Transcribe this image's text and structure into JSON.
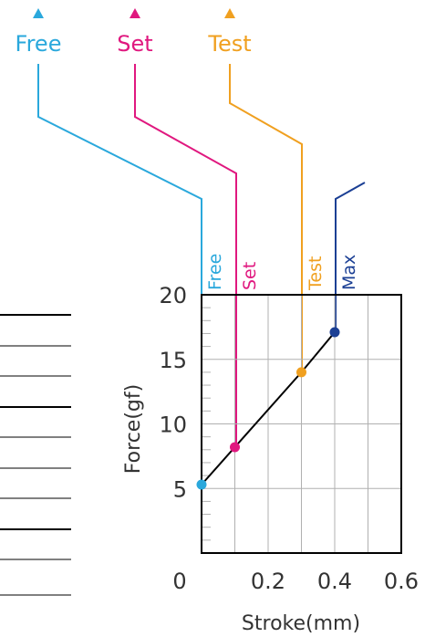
{
  "top_labels": [
    {
      "text": "Free",
      "color": "#2aa8dc"
    },
    {
      "text": "Set",
      "color": "#e0187f"
    },
    {
      "text": "Test",
      "color": "#f0a020"
    }
  ],
  "colors": {
    "free": "#2aa8dc",
    "set": "#e0187f",
    "test": "#f0a020",
    "max": "#1b3f94",
    "axis": "#000000",
    "grid": "#b0b0b0",
    "text": "#333333"
  },
  "chart_data": {
    "type": "line",
    "xlabel": "Stroke(mm)",
    "ylabel": "Force(gf)",
    "xlim": [
      0,
      0.6
    ],
    "ylim": [
      0,
      20
    ],
    "x_tick_labels": [
      "0",
      "0.2",
      "0.4",
      "0.6"
    ],
    "y_tick_labels": [
      "5",
      "10",
      "15",
      "20"
    ],
    "series": [
      {
        "x": [
          0.0,
          0.1,
          0.3,
          0.4
        ],
        "y": [
          5.3,
          8.2,
          14.0,
          17.1
        ]
      }
    ],
    "points": [
      {
        "name": "Free",
        "x": 0.0,
        "y": 5.3
      },
      {
        "name": "Set",
        "x": 0.1,
        "y": 8.2
      },
      {
        "name": "Test",
        "x": 0.3,
        "y": 14.0
      },
      {
        "name": "Max",
        "x": 0.4,
        "y": 17.1
      }
    ],
    "grid": true
  },
  "left_table_row_count": 10
}
